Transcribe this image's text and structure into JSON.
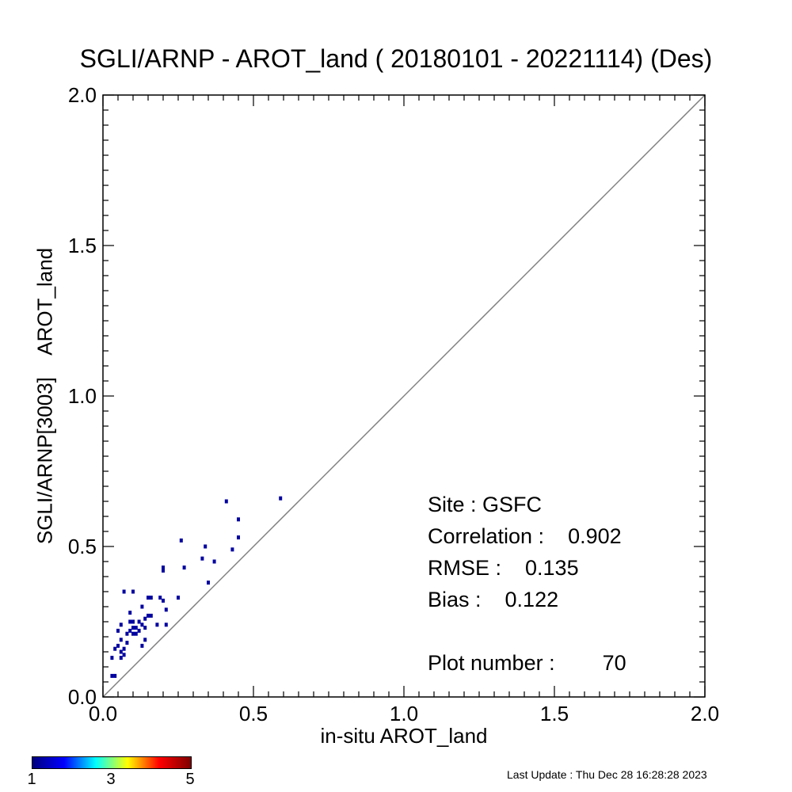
{
  "chart_data": {
    "type": "scatter",
    "title": "SGLI/ARNP - AROT_land ( 20180101 - 20221114) (Des)",
    "xlabel": "in-situ AROT_land",
    "ylabel": "SGLI/ARNP[3003]    AROT_land",
    "xlim": [
      0.0,
      2.0
    ],
    "ylim": [
      0.0,
      2.0
    ],
    "x_ticks": [
      "0.0",
      "0.5",
      "1.0",
      "1.5",
      "2.0"
    ],
    "y_ticks": [
      "0.0",
      "0.5",
      "1.0",
      "1.5",
      "2.0"
    ],
    "reference_line": "1:1",
    "points": [
      [
        0.03,
        0.07
      ],
      [
        0.04,
        0.07
      ],
      [
        0.03,
        0.13
      ],
      [
        0.04,
        0.16
      ],
      [
        0.05,
        0.17
      ],
      [
        0.05,
        0.22
      ],
      [
        0.06,
        0.19
      ],
      [
        0.06,
        0.13
      ],
      [
        0.06,
        0.15
      ],
      [
        0.07,
        0.14
      ],
      [
        0.07,
        0.16
      ],
      [
        0.06,
        0.24
      ],
      [
        0.07,
        0.35
      ],
      [
        0.08,
        0.18
      ],
      [
        0.08,
        0.21
      ],
      [
        0.09,
        0.22
      ],
      [
        0.09,
        0.25
      ],
      [
        0.09,
        0.28
      ],
      [
        0.1,
        0.21
      ],
      [
        0.1,
        0.23
      ],
      [
        0.1,
        0.25
      ],
      [
        0.1,
        0.35
      ],
      [
        0.11,
        0.21
      ],
      [
        0.11,
        0.23
      ],
      [
        0.12,
        0.22
      ],
      [
        0.12,
        0.25
      ],
      [
        0.13,
        0.17
      ],
      [
        0.13,
        0.24
      ],
      [
        0.13,
        0.3
      ],
      [
        0.14,
        0.19
      ],
      [
        0.14,
        0.23
      ],
      [
        0.14,
        0.26
      ],
      [
        0.15,
        0.27
      ],
      [
        0.15,
        0.33
      ],
      [
        0.16,
        0.27
      ],
      [
        0.16,
        0.33
      ],
      [
        0.18,
        0.24
      ],
      [
        0.19,
        0.33
      ],
      [
        0.2,
        0.32
      ],
      [
        0.2,
        0.42
      ],
      [
        0.2,
        0.43
      ],
      [
        0.21,
        0.24
      ],
      [
        0.21,
        0.29
      ],
      [
        0.25,
        0.33
      ],
      [
        0.26,
        0.52
      ],
      [
        0.27,
        0.43
      ],
      [
        0.33,
        0.46
      ],
      [
        0.34,
        0.5
      ],
      [
        0.35,
        0.38
      ],
      [
        0.37,
        0.45
      ],
      [
        0.41,
        0.65
      ],
      [
        0.43,
        0.49
      ],
      [
        0.45,
        0.53
      ],
      [
        0.45,
        0.59
      ],
      [
        0.59,
        0.66
      ]
    ],
    "colorbar": {
      "min": 1,
      "max": 5,
      "tick_labels": [
        "1",
        "3",
        "5"
      ]
    },
    "point_color": "#0000a0"
  },
  "stats": {
    "site": "Site : GSFC",
    "correlation": "Correlation :    0.902",
    "rmse": "RMSE :    0.135",
    "bias": "Bias :    0.122",
    "plot_number": "Plot number :        70"
  },
  "footer": {
    "last_update": "Last Update : Thu Dec 28 16:28:28 2023"
  }
}
